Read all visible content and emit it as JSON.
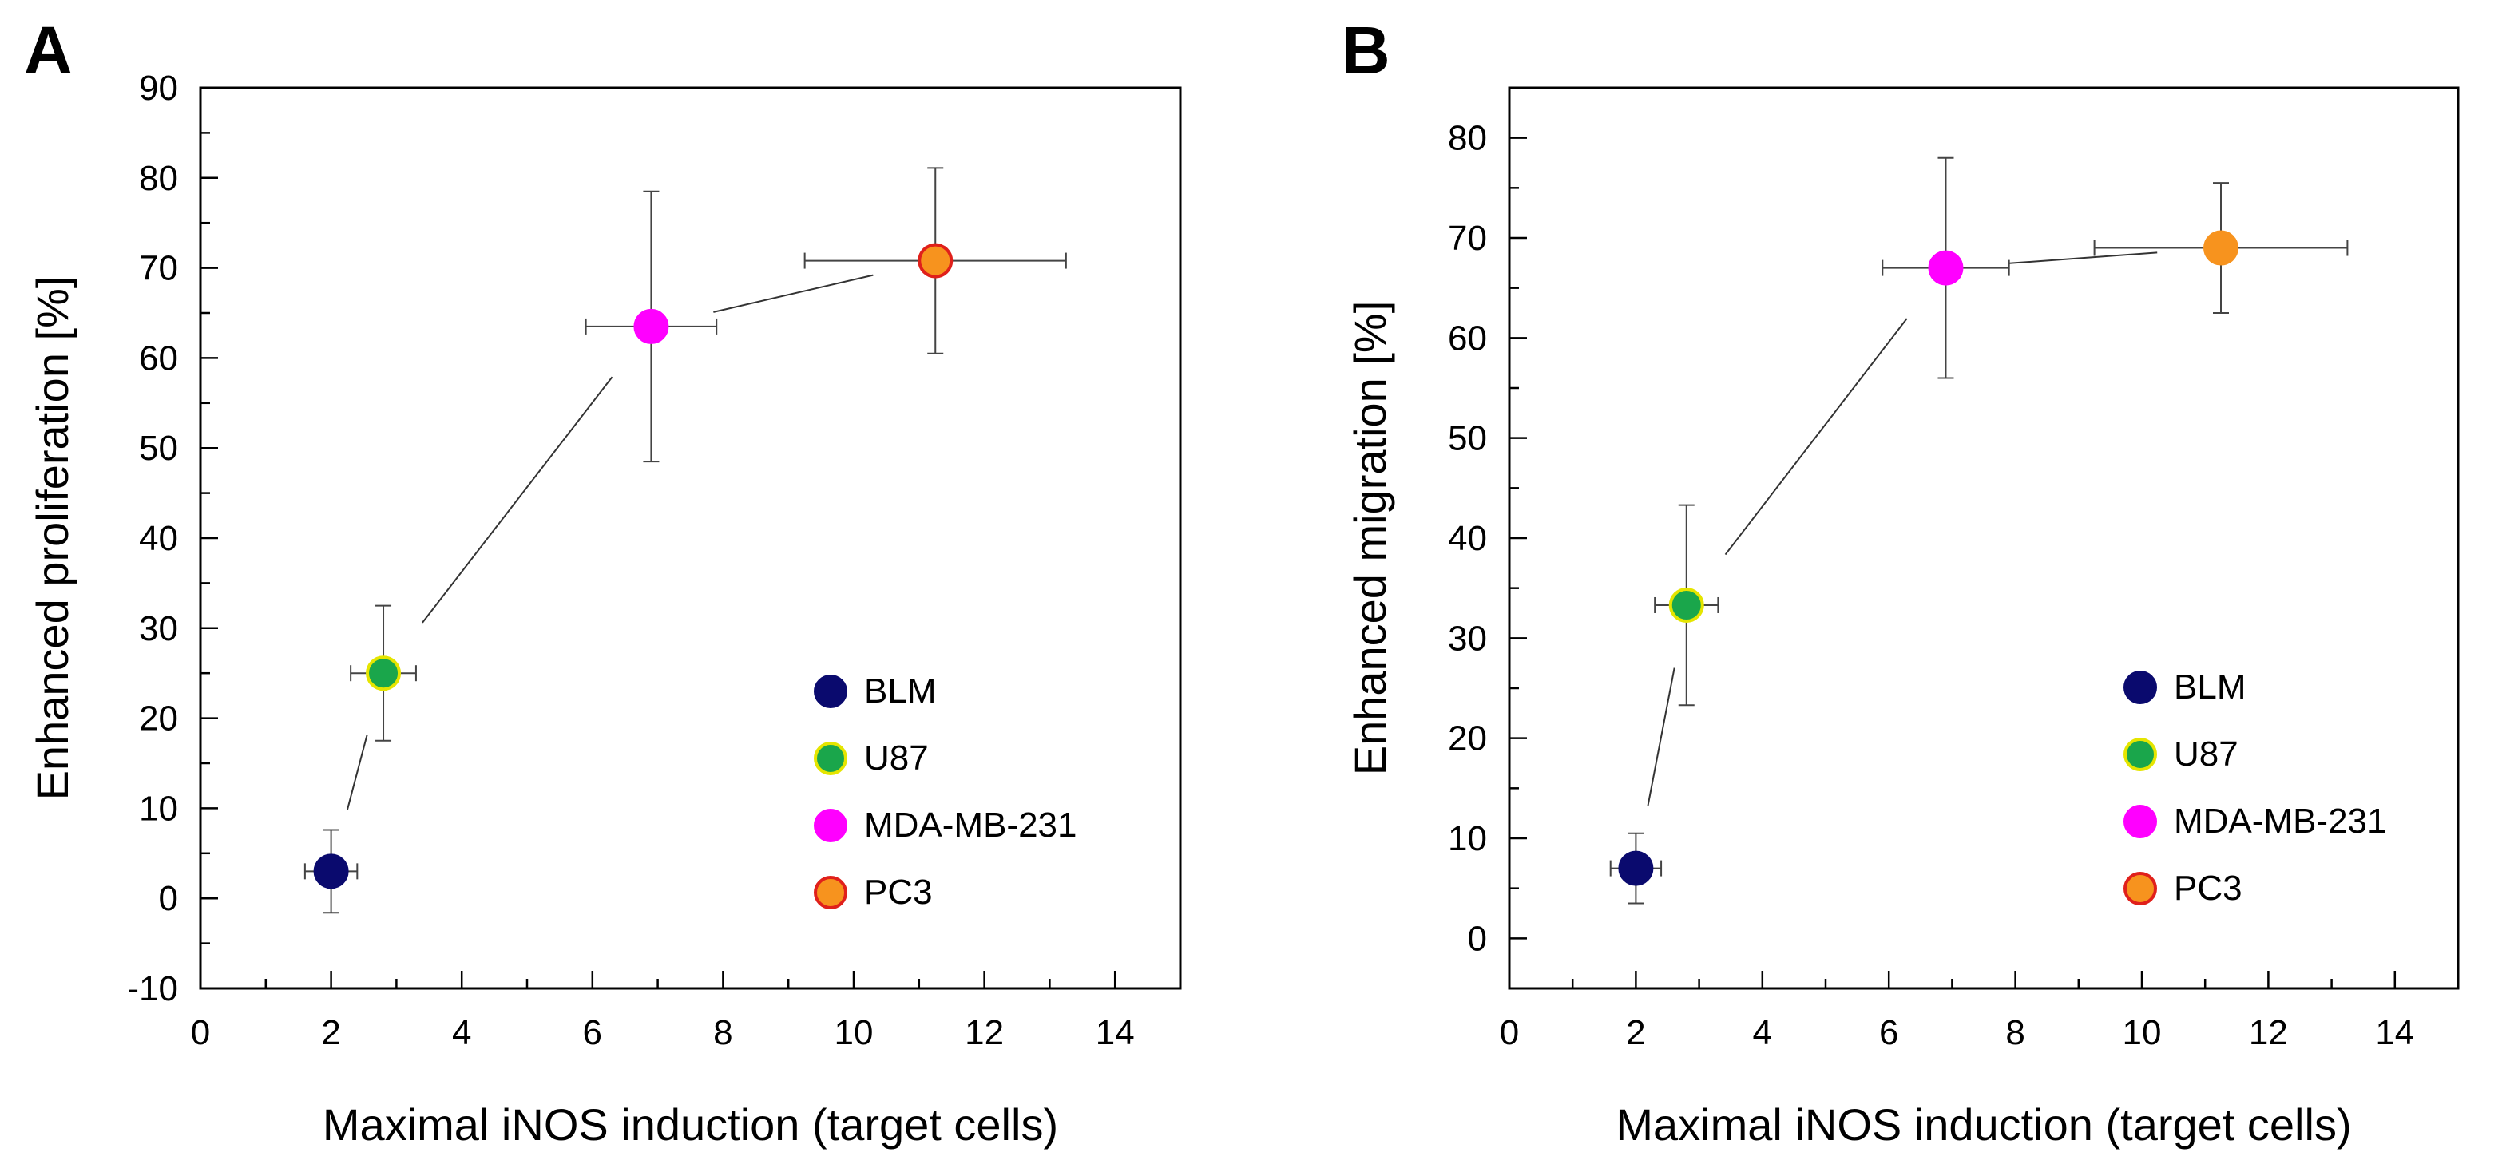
{
  "chart_data": [
    {
      "panel": "A",
      "type": "scatter",
      "title": "",
      "xlabel": "Maximal iNOS induction (target cells)",
      "ylabel": "Enhanced proliferation [%]",
      "xlim": [
        0,
        15
      ],
      "ylim": [
        -10,
        90
      ],
      "xticks": [
        0,
        2,
        4,
        6,
        8,
        10,
        12,
        14
      ],
      "yticks": [
        -10,
        0,
        10,
        20,
        30,
        40,
        50,
        60,
        70,
        80,
        90
      ],
      "grid": false,
      "legend_position": "lower-right",
      "connector": "line through points (BLM → U87 → MDA-MB-231 → PC3)",
      "series": [
        {
          "name": "BLM",
          "x": 2.0,
          "y": 3.0,
          "x_err": 0.4,
          "y_err": 4.6,
          "fill": "#0a0a6e",
          "edge": "#0a0a6e"
        },
        {
          "name": "U87",
          "x": 2.8,
          "y": 25.0,
          "x_err": 0.5,
          "y_err": 7.5,
          "fill": "#1aa64b",
          "edge": "#e5e500"
        },
        {
          "name": "MDA-MB-231",
          "x": 6.9,
          "y": 63.5,
          "x_err": 1.0,
          "y_err": 15.0,
          "fill": "#ff00ff",
          "edge": "#ff00ff"
        },
        {
          "name": "PC3",
          "x": 11.25,
          "y": 70.8,
          "x_err": 2.0,
          "y_err": 10.3,
          "fill": "#f7931e",
          "edge": "#e0201b"
        }
      ]
    },
    {
      "panel": "B",
      "type": "scatter",
      "title": "",
      "xlabel": "Maximal iNOS induction (target cells)",
      "ylabel": "Enhanced migration [%]",
      "xlim": [
        0,
        15
      ],
      "ylim": [
        -5,
        85
      ],
      "xticks": [
        0,
        2,
        4,
        6,
        8,
        10,
        12,
        14
      ],
      "yticks": [
        0,
        10,
        20,
        30,
        40,
        50,
        60,
        70,
        80
      ],
      "grid": false,
      "legend_position": "lower-right",
      "connector": "line through points (BLM → U87 → MDA-MB-231 → PC3)",
      "series": [
        {
          "name": "BLM",
          "x": 2.0,
          "y": 7.0,
          "x_err": 0.4,
          "y_err": 3.5,
          "fill": "#0a0a6e",
          "edge": "#0a0a6e"
        },
        {
          "name": "U87",
          "x": 2.8,
          "y": 33.3,
          "x_err": 0.5,
          "y_err": 10.0,
          "fill": "#1aa64b",
          "edge": "#e5e500"
        },
        {
          "name": "MDA-MB-231",
          "x": 6.9,
          "y": 67.0,
          "x_err": 1.0,
          "y_err": 11.0,
          "fill": "#ff00ff",
          "edge": "#ff00ff"
        },
        {
          "name": "PC3",
          "x": 11.25,
          "y": 69.0,
          "x_err": 2.0,
          "y_err": 6.5,
          "fill": "#f7931e",
          "edge": "#f7931e"
        }
      ],
      "legend_overrides": {
        "PC3": {
          "fill": "#f7931e",
          "edge": "#e0201b"
        }
      }
    }
  ]
}
